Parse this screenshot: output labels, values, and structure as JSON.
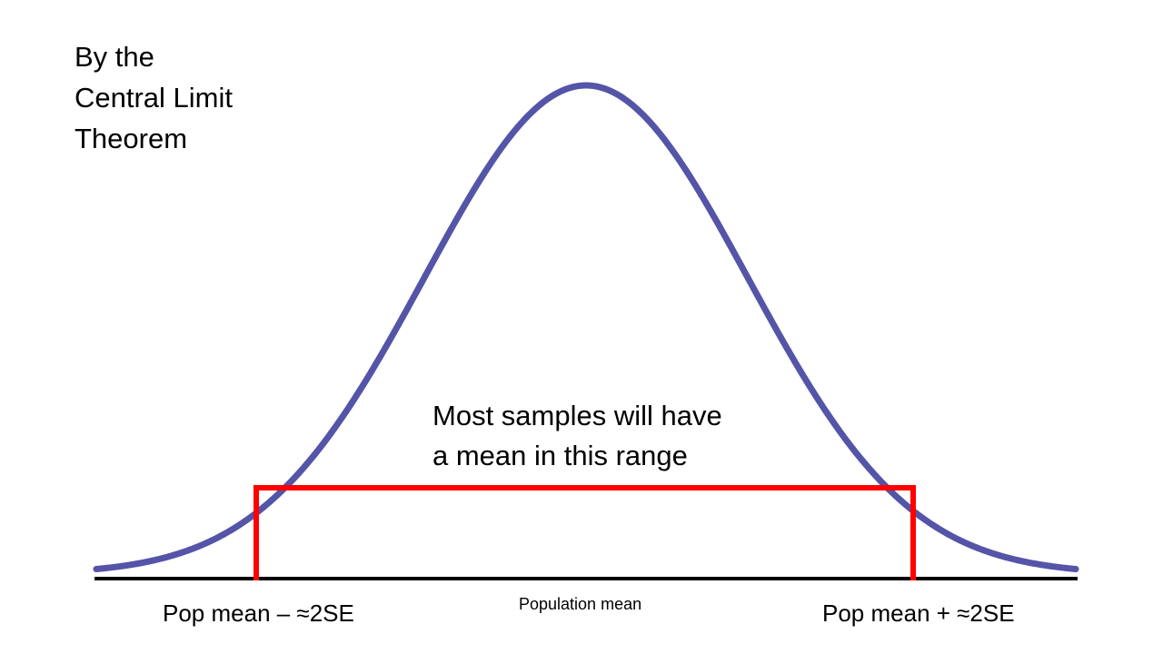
{
  "title_lines": [
    "By the",
    "Central Limit",
    "Theorem"
  ],
  "callout_lines": [
    "Most samples will have",
    "a mean in this range"
  ],
  "labels": {
    "left": "Pop mean – ≈2SE",
    "center": "Population mean",
    "right": "Pop mean + ≈2SE"
  },
  "colors": {
    "curve": "#5454a8",
    "range_box": "#ff0000",
    "axis": "#000000",
    "text": "#000000"
  }
}
